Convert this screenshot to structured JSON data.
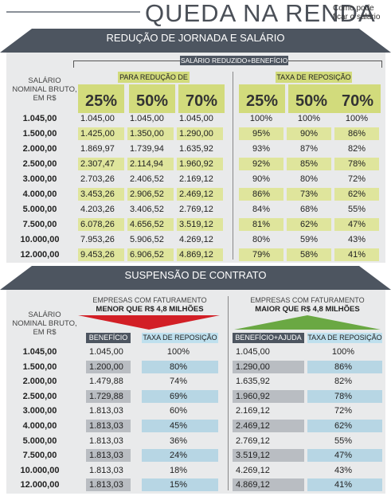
{
  "header": {
    "title": "QUEDA NA RENDA",
    "subtitle": "Como pode ficar o salário"
  },
  "section1": {
    "band_title": "REDUÇÃO DE JORNADA E SALÁRIO",
    "row_header": "SALÁRIO NOMINAL BRUTO, EM R$",
    "group_label": "SALÁRIO REDUZIDO+BENEFÍCIO",
    "left_label": "PARA REDUÇÃO DE",
    "right_label": "TAXA DE REPOSIÇÃO",
    "percents": [
      "25%",
      "50%",
      "70%",
      "25%",
      "50%",
      "70%"
    ],
    "rows": [
      {
        "salary": "1.045,00",
        "v25": "1.045,00",
        "v50": "1.045,00",
        "v70": "1.045,00",
        "t25": "100%",
        "t50": "100%",
        "t70": "100%"
      },
      {
        "salary": "1.500,00",
        "v25": "1.425,00",
        "v50": "1.350,00",
        "v70": "1.290,00",
        "t25": "95%",
        "t50": "90%",
        "t70": "86%"
      },
      {
        "salary": "2.000,00",
        "v25": "1.869,97",
        "v50": "1.739,94",
        "v70": "1.635,92",
        "t25": "93%",
        "t50": "87%",
        "t70": "82%"
      },
      {
        "salary": "2.500,00",
        "v25": "2.307,47",
        "v50": "2.114,94",
        "v70": "1.960,92",
        "t25": "92%",
        "t50": "85%",
        "t70": "78%"
      },
      {
        "salary": "3.000,00",
        "v25": "2.703,26",
        "v50": "2.406,52",
        "v70": "2.169,12",
        "t25": "90%",
        "t50": "80%",
        "t70": "72%"
      },
      {
        "salary": "4.000,00",
        "v25": "3.453,26",
        "v50": "2.906,52",
        "v70": "2.469,12",
        "t25": "86%",
        "t50": "73%",
        "t70": "62%"
      },
      {
        "salary": "5.000,00",
        "v25": "4.203,26",
        "v50": "3.406,52",
        "v70": "2.769,12",
        "t25": "84%",
        "t50": "68%",
        "t70": "55%"
      },
      {
        "salary": "7.500,00",
        "v25": "6.078,26",
        "v50": "4.656,52",
        "v70": "3.519,12",
        "t25": "81%",
        "t50": "62%",
        "t70": "47%"
      },
      {
        "salary": "10.000,00",
        "v25": "7.953,26",
        "v50": "5.906,52",
        "v70": "4.269,12",
        "t25": "80%",
        "t50": "59%",
        "t70": "43%"
      },
      {
        "salary": "12.000,00",
        "v25": "9.453,26",
        "v50": "6.906,52",
        "v70": "4.869,12",
        "t25": "79%",
        "t50": "58%",
        "t70": "41%"
      }
    ]
  },
  "section2": {
    "band_title": "SUSPENSÃO DE CONTRATO",
    "row_header": "SALÁRIO NOMINAL BRUTO, EM R$",
    "left_group_line1": "EMPRESAS COM FATURAMENTO",
    "left_group_line2": "MENOR QUE R$ 4,8 MILHÕES",
    "right_group_line1": "EMPRESAS COM FATURAMENTO",
    "right_group_line2": "MAIOR QUE R$ 4,8 MILHÕES",
    "col_benefit": "BENEFÍCIO",
    "col_rate_left": "TAXA DE REPOSIÇÃO",
    "col_benefit_aid": "BENEFÍCIO+AJUDA",
    "col_rate_right": "TAXA DE REPOSIÇÃO",
    "rows": [
      {
        "salary": "1.045,00",
        "b1": "1.045,00",
        "r1": "100%",
        "b2": "1.045,00",
        "r2": "100%"
      },
      {
        "salary": "1.500,00",
        "b1": "1.200,00",
        "r1": "80%",
        "b2": "1.290,00",
        "r2": "86%"
      },
      {
        "salary": "2.000,00",
        "b1": "1.479,88",
        "r1": "74%",
        "b2": "1.635,92",
        "r2": "82%"
      },
      {
        "salary": "2.500,00",
        "b1": "1.729,88",
        "r1": "69%",
        "b2": "1.960,92",
        "r2": "78%"
      },
      {
        "salary": "3.000,00",
        "b1": "1.813,03",
        "r1": "60%",
        "b2": "2.169,12",
        "r2": "72%"
      },
      {
        "salary": "4.000,00",
        "b1": "1.813,03",
        "r1": "45%",
        "b2": "2.469,12",
        "r2": "62%"
      },
      {
        "salary": "5.000,00",
        "b1": "1.813,03",
        "r1": "36%",
        "b2": "2.769,12",
        "r2": "55%"
      },
      {
        "salary": "7.500,00",
        "b1": "1.813,03",
        "r1": "24%",
        "b2": "3.519,12",
        "r2": "47%"
      },
      {
        "salary": "10.000,00",
        "b1": "1.813,03",
        "r1": "18%",
        "b2": "4.269,12",
        "r2": "43%"
      },
      {
        "salary": "12.000,00",
        "b1": "1.813,03",
        "r1": "15%",
        "b2": "4.869,12",
        "r2": "41%"
      }
    ]
  },
  "colors": {
    "band": "#4d5560",
    "panel": "#e9eaeb",
    "green_light": "#dfe59c",
    "green_header": "#d2db7c",
    "grey_cell": "#b9bdc2",
    "blue_cell": "#b7d6e4",
    "blue_header": "#bfe0ee",
    "red_arrow": "#d21f26",
    "green_arrow": "#6aa843"
  }
}
